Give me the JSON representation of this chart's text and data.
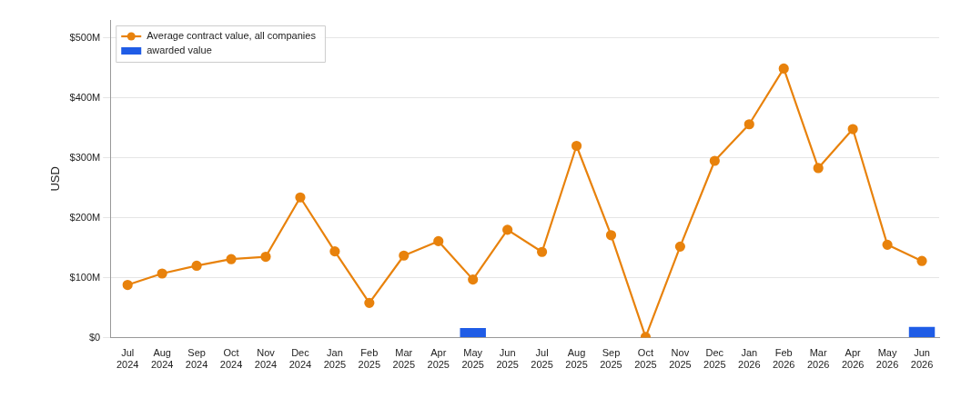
{
  "chart_data": {
    "type": "line",
    "ylabel": "USD",
    "categories": [
      "Jul 2024",
      "Aug 2024",
      "Sep 2024",
      "Oct 2024",
      "Nov 2024",
      "Dec 2024",
      "Jan 2025",
      "Feb 2025",
      "Mar 2025",
      "Apr 2025",
      "May 2025",
      "Jun 2025",
      "Jul 2025",
      "Aug 2025",
      "Sep 2025",
      "Oct 2025",
      "Nov 2025",
      "Dec 2025",
      "Jan 2026",
      "Feb 2026",
      "Mar 2026",
      "Apr 2026",
      "May 2026",
      "Jun 2026"
    ],
    "series": [
      {
        "name": "Average contract value, all companies",
        "color": "#e8820c",
        "values": [
          88,
          107,
          120,
          131,
          135,
          234,
          144,
          58,
          137,
          161,
          97,
          180,
          143,
          320,
          171,
          1,
          152,
          295,
          356,
          449,
          283,
          348,
          155,
          128
        ]
      },
      {
        "name": "awarded value",
        "type": "bar",
        "color": "#1f5ce6",
        "values": [
          null,
          null,
          null,
          null,
          null,
          null,
          null,
          null,
          null,
          null,
          16,
          null,
          null,
          null,
          null,
          null,
          null,
          null,
          null,
          null,
          null,
          null,
          null,
          18
        ]
      }
    ],
    "ylim": [
      0,
      530
    ],
    "yticks": [
      {
        "value": 0,
        "label": "$0"
      },
      {
        "value": 100,
        "label": "$100M"
      },
      {
        "value": 200,
        "label": "$200M"
      },
      {
        "value": 300,
        "label": "$300M"
      },
      {
        "value": 400,
        "label": "$400M"
      },
      {
        "value": 500,
        "label": "$500M"
      }
    ],
    "grid": "y",
    "legend": "top left",
    "marker": "circle",
    "line_style": "solid"
  }
}
